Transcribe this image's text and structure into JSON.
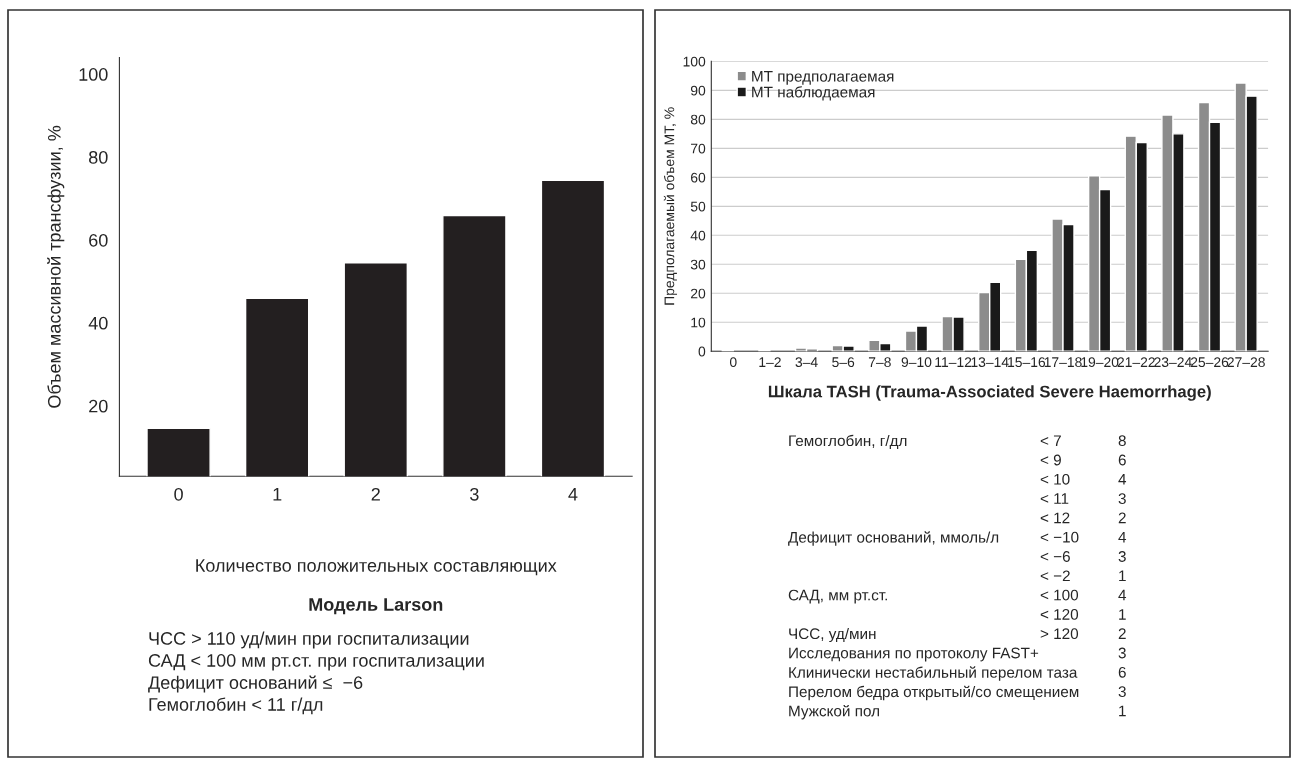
{
  "chart_data": [
    {
      "type": "bar",
      "title": "Модель Larson",
      "xlabel": "Количество положительных составляющих",
      "ylabel": "Объем массивной трансфузии, %",
      "categories": [
        "0",
        "1",
        "2",
        "3",
        "4"
      ],
      "series": [
        {
          "color": "#231f20",
          "values": [
            14.6,
            45.9,
            54.5,
            65.9,
            74.4
          ]
        }
      ],
      "ylim": [
        3,
        104
      ],
      "yticks": [
        20,
        40,
        60,
        80,
        100
      ],
      "grid": false,
      "legend": false,
      "annotations": [
        "ЧСС > 110 уд/мин при госпитализации",
        "САД < 100 мм рт.ст. при госпитализации",
        "Дефицит оснований ≤  −6",
        "Гемоглобин < 11 г/дл"
      ]
    },
    {
      "type": "bar",
      "xlabel": "Шкала TASH (Trauma-Associated Severe Haemorrhage)",
      "ylabel": "Предполагаемый объем МТ, %",
      "categories": [
        "0",
        "1–2",
        "3–4",
        "5–6",
        "7–8",
        "9–10",
        "11–12",
        "13–14",
        "15–16",
        "17–18",
        "19–20",
        "21–22",
        "23–24",
        "25–26",
        "27–28"
      ],
      "series": [
        {
          "name": "МТ предполагаемая",
          "color": "#8c8c8c",
          "values": [
            0.3,
            0.3,
            1.1,
            2.0,
            3.8,
            7.0,
            12.0,
            20.3,
            31.7,
            45.6,
            60.5,
            74.2,
            81.5,
            85.8,
            92.5
          ]
        },
        {
          "name": "МТ наблюдаемая",
          "color": "#1a1a1a",
          "values": [
            null,
            null,
            0.8,
            1.8,
            2.7,
            8.7,
            11.8,
            23.8,
            34.8,
            43.7,
            55.8,
            72,
            75,
            79,
            88
          ]
        }
      ],
      "ylim": [
        0,
        100
      ],
      "yticks": [
        0,
        10,
        20,
        30,
        40,
        50,
        60,
        70,
        80,
        90,
        100
      ],
      "grid": "y",
      "legend": "top left",
      "annotations": [
        "Гемоглобин, г/дл\t< 7\t8",
        "\t< 9\t6",
        "\t< 10\t4",
        "\t< 11\t3",
        "\t< 12\t2",
        "Дефицит оснований, ммоль/л\t< −10\t4",
        "\t< −6\t3",
        "\t< −2\t1",
        "САД, мм рт.ст.\t< 100\t4",
        "\t< 120\t1",
        "ЧСС, уд/мин\t> 120\t2",
        "Исследования по протоколу FAST+\t\t3",
        "Клинически нестабильный перелом таза\t\t6",
        "Перелом бедра открытый/со смещением\t\t3",
        "Мужской пол\t\t1"
      ]
    }
  ]
}
